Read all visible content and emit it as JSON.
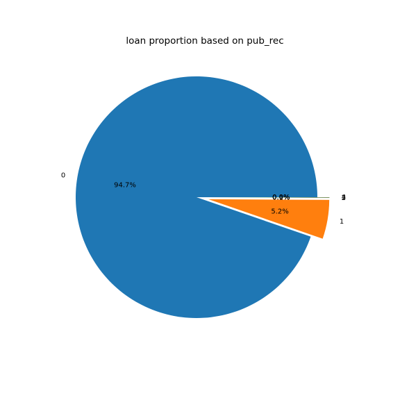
{
  "chart_data": {
    "type": "pie",
    "title": "loan proportion based on pub_rec",
    "categories": [
      "0",
      "1",
      "2",
      "3",
      "4"
    ],
    "values": [
      94.7,
      5.2,
      0.06,
      0.02,
      0.01
    ],
    "pct_labels": [
      "94.7%",
      "5.2%",
      "0.1%",
      "0.0%",
      "0.0%"
    ],
    "colors": [
      "#1f77b4",
      "#ff7f0e",
      "#2ca02c",
      "#d62728",
      "#9467bd"
    ],
    "explode": [
      0,
      0.1,
      0.1,
      0.1,
      0.1
    ],
    "start_angle_deg": 0,
    "direction": "counterclockwise"
  }
}
